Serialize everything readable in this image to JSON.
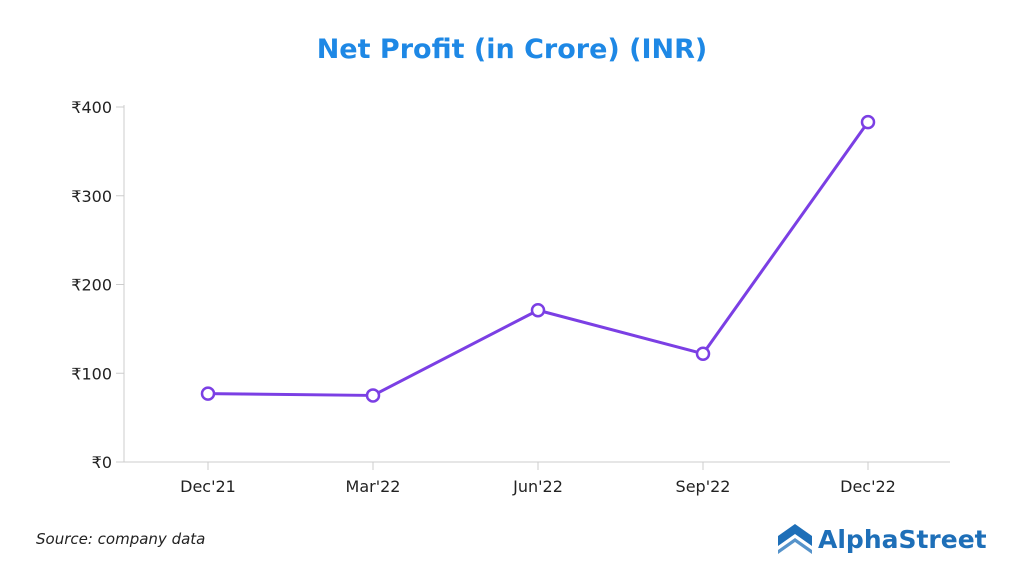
{
  "chart_data": {
    "type": "line",
    "title": "Net Profit (in Crore) (INR)",
    "categories": [
      "Dec'21",
      "Mar'22",
      "Jun'22",
      "Sep'22",
      "Dec'22"
    ],
    "series": [
      {
        "values": [
          77,
          75,
          171,
          122,
          383
        ]
      }
    ],
    "ylim": [
      0,
      400
    ],
    "yticks": [
      0,
      100,
      200,
      300,
      400
    ],
    "ytick_labels": [
      "₹0",
      "₹100",
      "₹200",
      "₹300",
      "₹400"
    ],
    "grid": false,
    "line_color": "#7b3fe4",
    "marker": "open-circle"
  },
  "footer": {
    "source": "Source: company data",
    "brand": "AlphaStreet",
    "brand_color": "#1e6fb8",
    "brand_icon": "alphastreet-logo-icon"
  }
}
